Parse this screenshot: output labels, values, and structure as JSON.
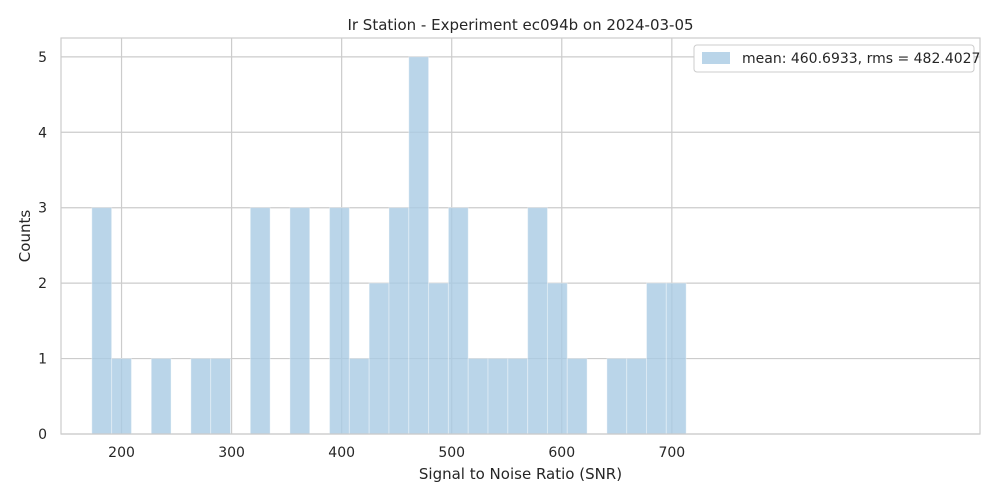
{
  "chart_data": {
    "type": "bar",
    "title": "Ir Station - Experiment ec094b on 2024-03-05",
    "xlabel": "Signal to Noise Ratio (SNR)",
    "ylabel": "Counts",
    "xlim": [
      145,
      980
    ],
    "ylim": [
      0,
      5.25
    ],
    "grid": true,
    "legend_position": "top-right",
    "bar_color": "#a9cbe3",
    "series": [
      {
        "name": "mean: 460.6933, rms = 482.4027",
        "bins": [
          {
            "x0": 173,
            "x1": 191,
            "count": 3
          },
          {
            "x0": 191,
            "x1": 209,
            "count": 1
          },
          {
            "x0": 209,
            "x1": 227,
            "count": 0
          },
          {
            "x0": 227,
            "x1": 245,
            "count": 1
          },
          {
            "x0": 245,
            "x1": 263,
            "count": 0
          },
          {
            "x0": 263,
            "x1": 281,
            "count": 1
          },
          {
            "x0": 281,
            "x1": 299,
            "count": 1
          },
          {
            "x0": 299,
            "x1": 317,
            "count": 0
          },
          {
            "x0": 317,
            "x1": 335,
            "count": 3
          },
          {
            "x0": 335,
            "x1": 353,
            "count": 0
          },
          {
            "x0": 353,
            "x1": 371,
            "count": 3
          },
          {
            "x0": 371,
            "x1": 389,
            "count": 0
          },
          {
            "x0": 389,
            "x1": 407,
            "count": 3
          },
          {
            "x0": 407,
            "x1": 425,
            "count": 1
          },
          {
            "x0": 425,
            "x1": 443,
            "count": 2
          },
          {
            "x0": 443,
            "x1": 461,
            "count": 3
          },
          {
            "x0": 461,
            "x1": 479,
            "count": 5
          },
          {
            "x0": 479,
            "x1": 497,
            "count": 2
          },
          {
            "x0": 497,
            "x1": 515,
            "count": 3
          },
          {
            "x0": 515,
            "x1": 533,
            "count": 1
          },
          {
            "x0": 533,
            "x1": 551,
            "count": 1
          },
          {
            "x0": 551,
            "x1": 569,
            "count": 1
          },
          {
            "x0": 569,
            "x1": 587,
            "count": 3
          },
          {
            "x0": 587,
            "x1": 605,
            "count": 2
          },
          {
            "x0": 605,
            "x1": 623,
            "count": 1
          },
          {
            "x0": 623,
            "x1": 641,
            "count": 0
          },
          {
            "x0": 641,
            "x1": 659,
            "count": 1
          },
          {
            "x0": 659,
            "x1": 677,
            "count": 1
          },
          {
            "x0": 677,
            "x1": 695,
            "count": 2
          },
          {
            "x0": 695,
            "x1": 713,
            "count": 2
          }
        ]
      }
    ],
    "x_ticks": [
      200,
      300,
      400,
      500,
      600,
      700
    ],
    "y_ticks": [
      0,
      1,
      2,
      3,
      4,
      5
    ]
  }
}
